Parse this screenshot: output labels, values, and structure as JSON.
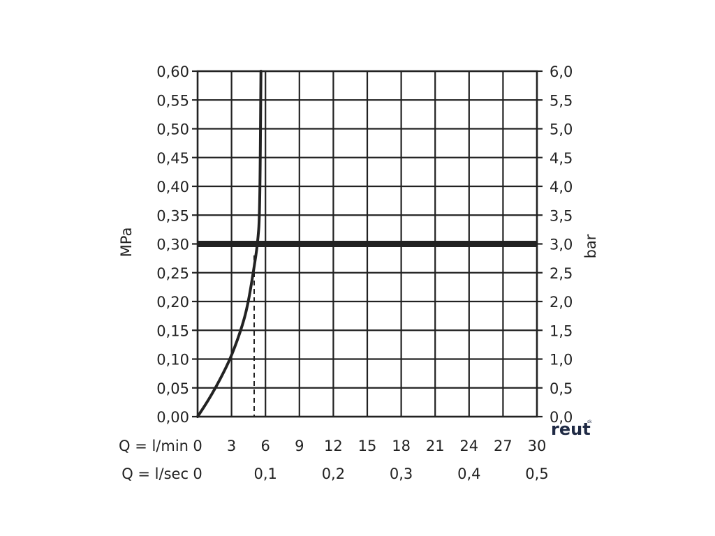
{
  "chart_data": {
    "type": "line",
    "ylabel_left": "MPa",
    "ylabel_right": "bar",
    "ylim": [
      0,
      0.6
    ],
    "xlim": [
      0,
      30
    ],
    "y_ticks_left": [
      "0,00",
      "0,05",
      "0,10",
      "0,15",
      "0,20",
      "0,25",
      "0,30",
      "0,35",
      "0,40",
      "0,45",
      "0,50",
      "0,55",
      "0,60"
    ],
    "y_ticks_right": [
      "0,0",
      "0,5",
      "1,0",
      "1,5",
      "2,0",
      "2,5",
      "3,0",
      "3,5",
      "4,0",
      "4,5",
      "5,0",
      "5,5",
      "6,0"
    ],
    "x_axes": [
      {
        "label": "Q = l/min",
        "ticks": [
          {
            "x": 0,
            "text": "0"
          },
          {
            "x": 3,
            "text": "3"
          },
          {
            "x": 6,
            "text": "6"
          },
          {
            "x": 9,
            "text": "9"
          },
          {
            "x": 12,
            "text": "12"
          },
          {
            "x": 15,
            "text": "15"
          },
          {
            "x": 18,
            "text": "18"
          },
          {
            "x": 21,
            "text": "21"
          },
          {
            "x": 24,
            "text": "24"
          },
          {
            "x": 27,
            "text": "27"
          },
          {
            "x": 30,
            "text": "30"
          }
        ]
      },
      {
        "label": "Q = l/sec",
        "ticks": [
          {
            "x": 0,
            "text": "0"
          },
          {
            "x": 6,
            "text": "0,1"
          },
          {
            "x": 12,
            "text": "0,2"
          },
          {
            "x": 18,
            "text": "0,3"
          },
          {
            "x": 24,
            "text": "0,4"
          },
          {
            "x": 30,
            "text": "0,5"
          }
        ]
      }
    ],
    "grid": true,
    "series": [
      {
        "x": [
          0,
          1,
          2,
          3,
          4,
          4.5,
          5.0,
          5.3,
          5.5,
          5.6
        ],
        "y": [
          0,
          0.03,
          0.065,
          0.105,
          0.16,
          0.2,
          0.26,
          0.3,
          0.35,
          0.6
        ]
      }
    ],
    "reference_line": {
      "y": 0.3,
      "style": "thick"
    },
    "marker_line": {
      "x": 5.0,
      "y_top": 0.28,
      "style": "dashed"
    }
  },
  "logo": {
    "text": "reut",
    "sup": "sk"
  }
}
